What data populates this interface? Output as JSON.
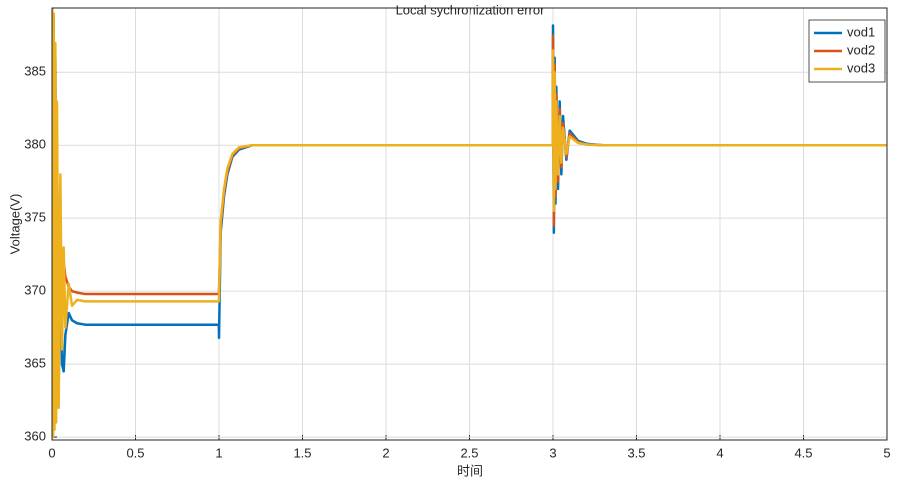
{
  "chart_data": {
    "type": "line",
    "title": "Local sychronization error",
    "x_label": "时间",
    "y_label": "Voltage(V)",
    "x": [
      0,
      0.005,
      0.01,
      0.015,
      0.02,
      0.025,
      0.03,
      0.04,
      0.05,
      0.06,
      0.07,
      0.08,
      0.1,
      0.12,
      0.15,
      0.2,
      0.3,
      0.5,
      0.8,
      0.999,
      1.0,
      1.01,
      1.03,
      1.05,
      1.08,
      1.12,
      1.2,
      1.3,
      1.5,
      2,
      2.5,
      2.999,
      3.0,
      3.005,
      3.01,
      3.015,
      3.02,
      3.03,
      3.04,
      3.05,
      3.06,
      3.08,
      3.1,
      3.15,
      3.2,
      3.3,
      4,
      5
    ],
    "series": [
      {
        "name": "vod1",
        "color": "#0072bd",
        "values": [
          389.4,
          360,
          389,
          361,
          386,
          362,
          380,
          363,
          375,
          365,
          364.5,
          367,
          368.5,
          368,
          367.8,
          367.7,
          367.7,
          367.7,
          367.7,
          367.7,
          366.8,
          374,
          376.5,
          378,
          379.2,
          379.7,
          380,
          380,
          380,
          380,
          380,
          380,
          388.2,
          374,
          386,
          376,
          384,
          377,
          383,
          378,
          382,
          379,
          381,
          380.3,
          380.1,
          380,
          380,
          380
        ]
      },
      {
        "name": "vod2",
        "color": "#d95319",
        "values": [
          389.4,
          360,
          389,
          361,
          385,
          363,
          380,
          364,
          374,
          370,
          372,
          371,
          370.3,
          370,
          369.9,
          369.8,
          369.8,
          369.8,
          369.8,
          369.8,
          370,
          374.5,
          376.8,
          378.2,
          379.3,
          379.8,
          380,
          380,
          380,
          380,
          380,
          380,
          387.5,
          374.5,
          385.5,
          376.5,
          383.5,
          377.5,
          382.5,
          378.5,
          381.5,
          379.2,
          380.8,
          380.2,
          380.05,
          380,
          380,
          380
        ]
      },
      {
        "name": "vod3",
        "color": "#edb120",
        "values": [
          389.4,
          360,
          389,
          360.5,
          387,
          361,
          383,
          362,
          378,
          366,
          373,
          367.5,
          370.5,
          369,
          369.4,
          369.3,
          369.3,
          369.3,
          369.3,
          369.3,
          369.5,
          374.8,
          377,
          378.4,
          379.4,
          379.85,
          380,
          380,
          380,
          380,
          380,
          380,
          386.5,
          375.5,
          385,
          377,
          383,
          378,
          382,
          378.8,
          381.2,
          379.4,
          380.6,
          380.15,
          380.05,
          380,
          380,
          380
        ]
      }
    ],
    "xlim": [
      0,
      5
    ],
    "xticks": [
      0,
      0.5,
      1,
      1.5,
      2,
      2.5,
      3,
      3.5,
      4,
      4.5,
      5
    ],
    "ylim": [
      359.8,
      389.4
    ],
    "yticks": [
      360,
      365,
      370,
      375,
      380,
      385
    ],
    "grid": true,
    "legend": "top-right"
  }
}
